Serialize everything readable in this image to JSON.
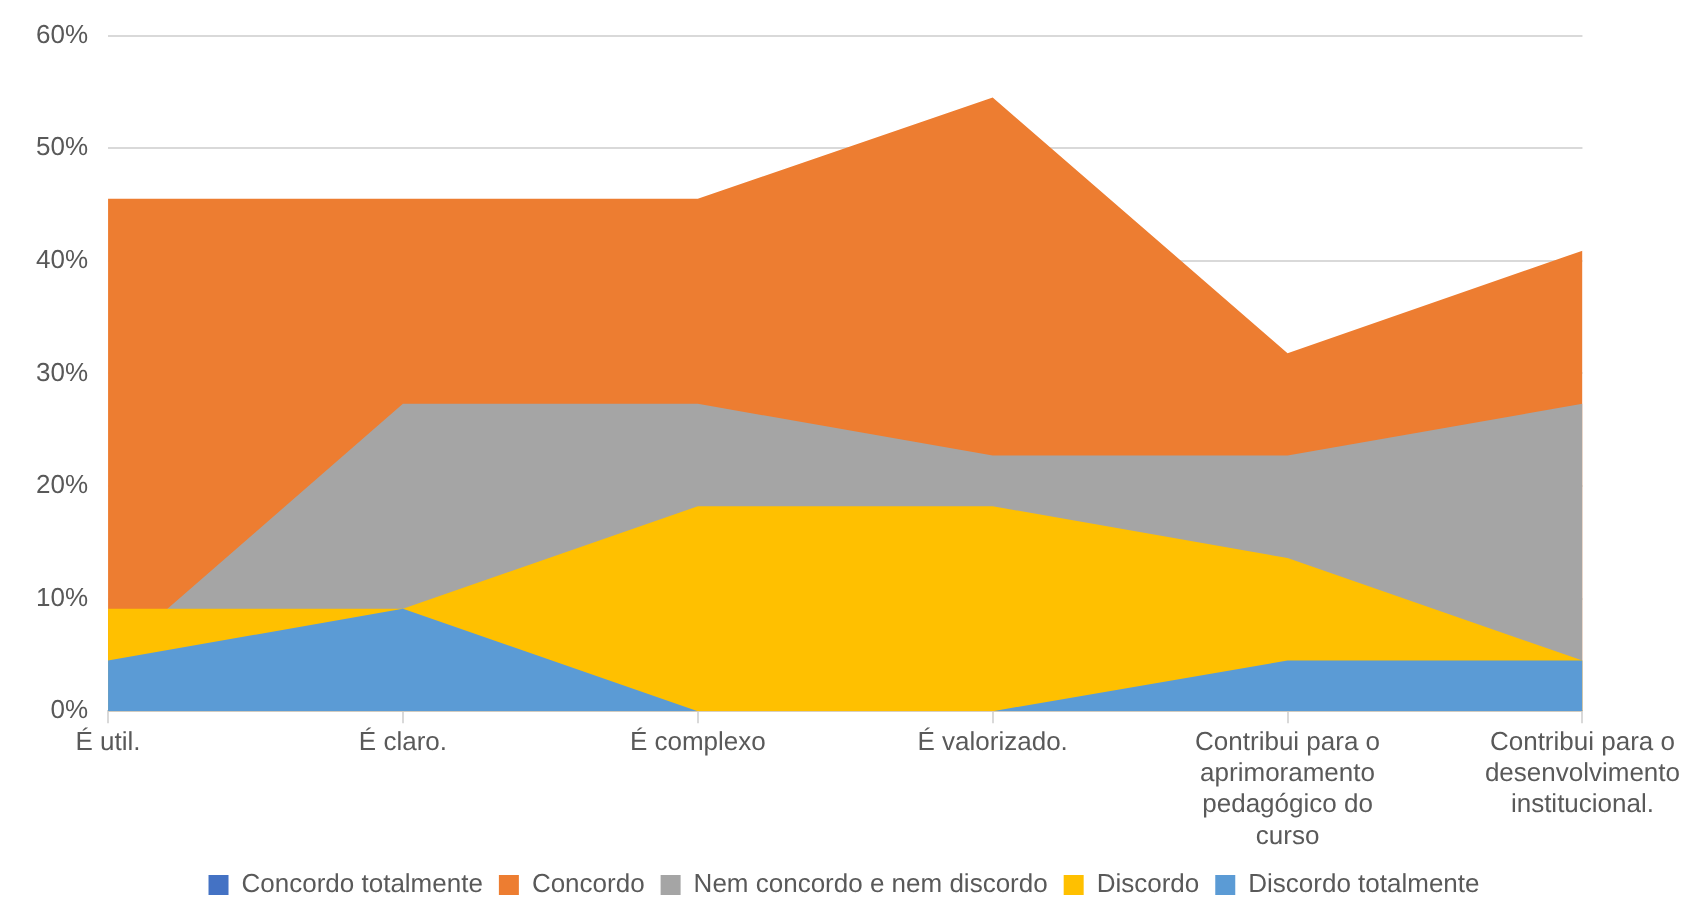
{
  "chart_data": {
    "type": "area",
    "categories": [
      "É util.",
      "É claro.",
      "É complexo",
      "É valorizado.",
      "Contribui para o aprimoramento pedagógico do curso",
      "Contribui para o desenvolvimento institucional."
    ],
    "series": [
      {
        "name": "Concordo totalmente",
        "color": "#4472c4",
        "values": [
          null,
          null,
          null,
          null,
          null,
          null
        ]
      },
      {
        "name": "Concordo",
        "color": "#ed7d31",
        "values": [
          45.5,
          45.5,
          45.5,
          54.5,
          31.8,
          40.9
        ]
      },
      {
        "name": "Nem concordo e nem discordo",
        "color": "#a5a5a5",
        "values": [
          4.5,
          27.3,
          27.3,
          22.7,
          22.7,
          27.3
        ]
      },
      {
        "name": "Discordo",
        "color": "#ffc000",
        "values": [
          9.1,
          9.1,
          18.2,
          18.2,
          13.6,
          4.5
        ]
      },
      {
        "name": "Discordo totalmente",
        "color": "#5b9bd5",
        "values": [
          4.5,
          9.1,
          0,
          0,
          4.5,
          4.5
        ]
      }
    ],
    "ylim": [
      0,
      60
    ],
    "yticks": [
      {
        "value": 0,
        "label": "0%"
      },
      {
        "value": 10,
        "label": "10%"
      },
      {
        "value": 20,
        "label": "20%"
      },
      {
        "value": 30,
        "label": "30%"
      },
      {
        "value": 40,
        "label": "40%"
      },
      {
        "value": 50,
        "label": "50%"
      },
      {
        "value": 60,
        "label": "60%"
      }
    ],
    "grid": "y",
    "legend": "bottom"
  }
}
